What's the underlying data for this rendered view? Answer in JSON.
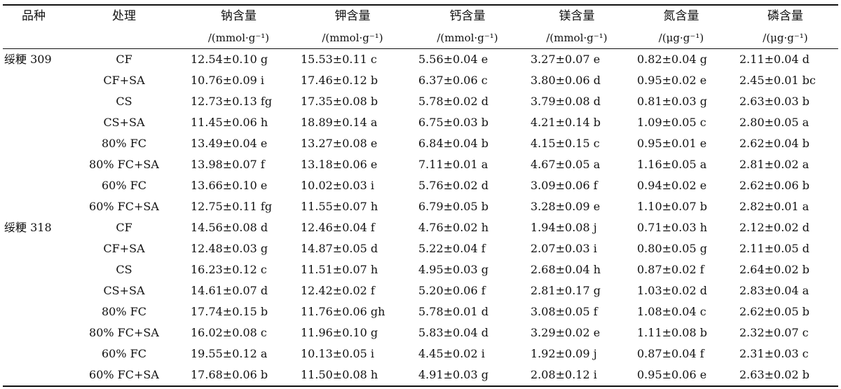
{
  "headers": {
    "row1": [
      "品种",
      "处理",
      "钠含量",
      "钾含量",
      "钙含量",
      "镁含量",
      "氮含量",
      "磷含量"
    ],
    "units": [
      "",
      "",
      "/(mmol·g⁻¹)",
      "/(mmol·g⁻¹)",
      "/(mmol·g⁻¹)",
      "/(mmol·g⁻¹)",
      "/(μg·g⁻¹)",
      "/(μg·g⁻¹)"
    ]
  },
  "rows": [
    [
      "绥粳 309",
      "CF",
      "12.54±0.10 g",
      "15.53±0.11 c",
      "5.56±0.04 e",
      "3.27±0.07 e",
      "0.82±0.04 g",
      "2.11±0.04 d"
    ],
    [
      "",
      "CF+SA",
      "10.76±0.09 i",
      "17.46±0.12 b",
      "6.37±0.06 c",
      "3.80±0.06 d",
      "0.95±0.02 e",
      "2.45±0.01 bc"
    ],
    [
      "",
      "CS",
      "12.73±0.13 fg",
      "17.35±0.08 b",
      "5.78±0.02 d",
      "3.79±0.08 d",
      "0.81±0.03 g",
      "2.63±0.03 b"
    ],
    [
      "",
      "CS+SA",
      "11.45±0.06 h",
      "18.89±0.14 a",
      "6.75±0.03 b",
      "4.21±0.14 b",
      "1.09±0.05 c",
      "2.80±0.05 a"
    ],
    [
      "",
      "80% FC",
      "13.49±0.04 e",
      "13.27±0.08 e",
      "6.84±0.04 b",
      "4.15±0.15 c",
      "0.95±0.01 e",
      "2.62±0.04 b"
    ],
    [
      "",
      "80% FC+SA",
      "13.98±0.07 f",
      "13.18±0.06 e",
      "7.11±0.01 a",
      "4.67±0.05 a",
      "1.16±0.05 a",
      "2.81±0.02 a"
    ],
    [
      "",
      "60% FC",
      "13.66±0.10 e",
      "10.02±0.03 i",
      "5.76±0.02 d",
      "3.09±0.06 f",
      "0.94±0.02 e",
      "2.62±0.06 b"
    ],
    [
      "",
      "60% FC+SA",
      "12.75±0.11 fg",
      "11.55±0.07 h",
      "6.79±0.05 b",
      "3.28±0.09 e",
      "1.10±0.07 b",
      "2.82±0.01 a"
    ],
    [
      "绥粳 318",
      "CF",
      "14.56±0.08 d",
      "12.46±0.04 f",
      "4.76±0.02 h",
      "1.94±0.08 j",
      "0.71±0.03 h",
      "2.12±0.02 d"
    ],
    [
      "",
      "CF+SA",
      "12.48±0.03 g",
      "14.87±0.05 d",
      "5.22±0.04 f",
      "2.07±0.03 i",
      "0.80±0.05 g",
      "2.11±0.05 d"
    ],
    [
      "",
      "CS",
      "16.23±0.12 c",
      "11.51±0.07 h",
      "4.95±0.03 g",
      "2.68±0.04 h",
      "0.87±0.02 f",
      "2.64±0.02 b"
    ],
    [
      "",
      "CS+SA",
      "14.61±0.07 d",
      "12.42±0.02 f",
      "5.20±0.06 f",
      "2.81±0.17 g",
      "1.03±0.02 d",
      "2.83±0.04 a"
    ],
    [
      "",
      "80% FC",
      "17.74±0.15 b",
      "11.76±0.06 gh",
      "5.78±0.01 d",
      "3.08±0.05 f",
      "1.08±0.04 c",
      "2.62±0.05 b"
    ],
    [
      "",
      "80% FC+SA",
      "16.02±0.08 c",
      "11.96±0.10 g",
      "5.83±0.04 d",
      "3.29±0.02 e",
      "1.11±0.08 b",
      "2.32±0.07 c"
    ],
    [
      "",
      "60% FC",
      "19.55±0.12 a",
      "10.13±0.05 i",
      "4.45±0.02 i",
      "1.92±0.09 j",
      "0.87±0.04 f",
      "2.31±0.03 c"
    ],
    [
      "",
      "60% FC+SA",
      "17.68±0.06 b",
      "11.50±0.08 h",
      "4.91±0.03 g",
      "2.08±0.12 i",
      "0.95±0.06 e",
      "2.63±0.02 b"
    ]
  ]
}
